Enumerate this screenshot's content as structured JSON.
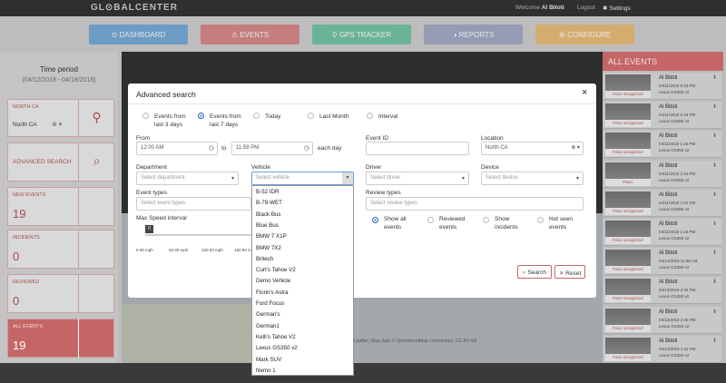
{
  "header": {
    "logo": "GL⊙BALCENTER",
    "welcome": "Welcome",
    "user": "Al Bitoti",
    "logout": "Logout",
    "settings": "Settings"
  },
  "nav": [
    "DASHBOARD",
    "EVENTS",
    "GPS TRACKER",
    "REPORTS",
    "CONFIGURE"
  ],
  "sidebar": {
    "time_period_label": "Time period",
    "time_period_range": "(04/12/2018 - 04/18/2018)",
    "location_title": "NORTH CA",
    "location_value": "North CA",
    "advanced_search": "ADVANCED SEARCH",
    "counters": [
      {
        "label": "NEW EVENTS",
        "count": 19
      },
      {
        "label": "INCIDENTS",
        "count": 0
      },
      {
        "label": "REVIEWED",
        "count": 0
      },
      {
        "label": "ALL EVENTS",
        "count": 19
      }
    ]
  },
  "map": {
    "attribution": "Leaflet | Map data © OpenStreetMap contributors, CC-BY-SA"
  },
  "events_panel": {
    "title": "ALL EVENTS",
    "events": [
      {
        "name": "Al Bitoti",
        "time": "04/11/2018 5:23 PM",
        "vehicle": "Lexus GS350 v2",
        "tag": "Face recognized"
      },
      {
        "name": "Al Bitoti",
        "time": "04/11/2018 5:18 PM",
        "vehicle": "Lexus GS350 v2",
        "tag": "Face recognized"
      },
      {
        "name": "Al Bitoti",
        "time": "04/11/2018 1:46 PM",
        "vehicle": "Lexus GS350 v2",
        "tag": "Face recognized"
      },
      {
        "name": "Al Bitoti",
        "time": "04/11/2018 2:34 PM",
        "vehicle": "Lexus GS350 v2",
        "tag": "Panic"
      },
      {
        "name": "Al Bitoti",
        "time": "04/11/2018 2:22 PM",
        "vehicle": "Lexus GS350 v2",
        "tag": "Face recognized"
      },
      {
        "name": "Al Bitoti",
        "time": "04/11/2018 1:44 PM",
        "vehicle": "Lexus GS350 v2",
        "tag": "Face recognized"
      },
      {
        "name": "Al Bitoti",
        "time": "04/14/2018 11:08 AM",
        "vehicle": "Lexus GS350 v2",
        "tag": "Face recognized"
      },
      {
        "name": "Al Bitoti",
        "time": "04/13/2018 2:32 PM",
        "vehicle": "Lexus GS350 v2",
        "tag": "Face recognized"
      },
      {
        "name": "Al Bitoti",
        "time": "04/13/2018 2:25 PM",
        "vehicle": "Lexus GS350 v2",
        "tag": "Face recognized"
      },
      {
        "name": "Al Bitoti",
        "time": "04/13/2018 1:31 PM",
        "vehicle": "Lexus GS350 v2",
        "tag": "Face recognized"
      }
    ]
  },
  "modal": {
    "title": "Advanced search",
    "close": "×",
    "periods": [
      "Events from last 3 days",
      "Events from last 7 days",
      "Today",
      "Last Month",
      "Interval"
    ],
    "from_label": "From",
    "from_value": "12:00 AM",
    "to_label": "to",
    "to_value": "11:59 PM",
    "each_day": "each day",
    "event_id_label": "Event ID",
    "location_label": "Location",
    "location_value": "North CA",
    "department_label": "Department",
    "department_placeholder": "Select department",
    "vehicle_label": "Vehicle",
    "vehicle_placeholder": "Select vehicle",
    "driver_label": "Driver",
    "driver_placeholder": "Select driver",
    "device_label": "Device",
    "device_placeholder": "Select device",
    "event_types_label": "Event types",
    "event_types_placeholder": "Select event types",
    "review_types_label": "Review types",
    "review_types_placeholder": "Select review types",
    "speed_label": "Max Speed interval",
    "speed_handle": 0,
    "speed_ticks": [
      "0.00 mph",
      "50.00 mph",
      "100.00 mph",
      "150.00 m"
    ],
    "review_options": [
      "Show all events",
      "Reviewed events",
      "Show incidents",
      "Not seen events"
    ],
    "search": "Search",
    "reset": "Reset",
    "vehicle_options": [
      "B-52 IDR",
      "B-79-WET",
      "Black Bus",
      "Blue Bus",
      "BMW 7 X1P",
      "BMW 7X2",
      "Britech",
      "Curt's Tahoe V2",
      "Demo Vehicle",
      "Florin's Astra",
      "Ford Focus",
      "German's",
      "German1",
      "Kelli's Tahoe V2",
      "Lexus GS350 v2",
      "Mark SUV",
      "Nemo 1"
    ]
  }
}
